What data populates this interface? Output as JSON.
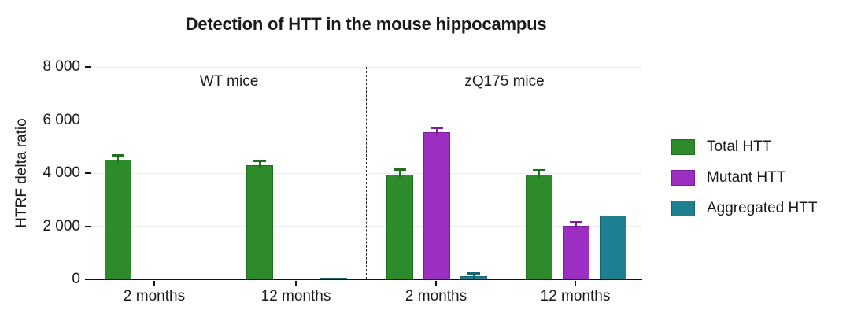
{
  "chart_data": {
    "type": "bar",
    "title": "Detection of HTT in the mouse hippocampus",
    "ylabel": "HTRF delta ratio",
    "xlabel": "",
    "ylim": [
      0,
      8000
    ],
    "grid": "horizontal",
    "legend_position": "right",
    "y_ticks": [
      {
        "value": 0,
        "label": "0"
      },
      {
        "value": 2000,
        "label": "2 000"
      },
      {
        "value": 4000,
        "label": "4 000"
      },
      {
        "value": 6000,
        "label": "6 000"
      },
      {
        "value": 8000,
        "label": "8 000"
      }
    ],
    "sections": [
      {
        "label": "WT mice",
        "categories": [
          "2 months",
          "12 months"
        ]
      },
      {
        "label": "zQ175 mice",
        "categories": [
          "2 months",
          "12 months"
        ]
      }
    ],
    "categories": [
      "WT 2 months",
      "WT 12 months",
      "zQ175 2 months",
      "zQ175 12 months"
    ],
    "x_tick_labels": [
      "2 months",
      "12 months",
      "2 months",
      "12 months"
    ],
    "series": [
      {
        "name": "Total HTT",
        "color": "#2e8b2c",
        "border_color": "#1e6f1e",
        "values": [
          4510,
          4310,
          3930,
          3930
        ],
        "errors": [
          120,
          110,
          160,
          150
        ]
      },
      {
        "name": "Mutant HTT",
        "color": "#9a2fc1",
        "border_color": "#7b1fa0",
        "values": [
          0,
          0,
          5530,
          2030
        ],
        "errors": [
          0,
          0,
          120,
          100
        ]
      },
      {
        "name": "Aggregated HTT",
        "color": "#1d7f8f",
        "border_color": "#156470",
        "values": [
          20,
          50,
          130,
          2400
        ],
        "errors": [
          0,
          0,
          60,
          0
        ]
      }
    ],
    "divider_between_sections": true
  }
}
